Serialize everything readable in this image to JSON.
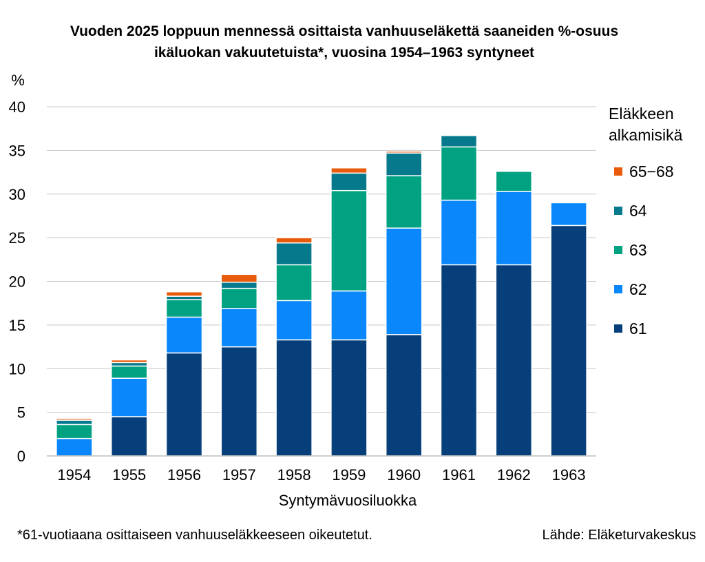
{
  "chart_data": {
    "type": "bar",
    "stacked": true,
    "title_lines": [
      "Vuoden 2025 loppuun mennessä osittaista vanhuuseläkettä saaneiden %-osuus",
      "ikäluokan vakuutetuista*, vuosina 1954–1963 syntyneet"
    ],
    "ylabel": "%",
    "xlabel": "Syntymävuosiluokka",
    "ylim": [
      0,
      40
    ],
    "yticks": [
      0,
      5,
      10,
      15,
      20,
      25,
      30,
      35,
      40
    ],
    "grid": true,
    "legend_title": "Eläkkeen alkamisikä",
    "legend_title_lines": [
      "Eläkkeen",
      "alkamisikä"
    ],
    "legend_position": "right",
    "categories": [
      "1954",
      "1955",
      "1956",
      "1957",
      "1958",
      "1959",
      "1960",
      "1961",
      "1962",
      "1963"
    ],
    "series": [
      {
        "name": "61",
        "color": "#073f7b",
        "values": [
          0,
          4.5,
          11.8,
          12.5,
          13.3,
          13.3,
          13.9,
          21.9,
          21.9,
          26.4
        ]
      },
      {
        "name": "62",
        "color": "#0a87fb",
        "values": [
          2.0,
          4.4,
          4.1,
          4.4,
          4.5,
          5.6,
          12.2,
          7.4,
          8.4,
          2.6
        ]
      },
      {
        "name": "63",
        "color": "#01a282",
        "values": [
          1.6,
          1.4,
          2.0,
          2.3,
          4.1,
          11.5,
          6.0,
          6.1,
          2.3,
          0
        ]
      },
      {
        "name": "64",
        "color": "#06798d",
        "values": [
          0.5,
          0.4,
          0.4,
          0.7,
          2.5,
          2.0,
          2.6,
          1.3,
          0,
          0
        ]
      },
      {
        "name": "65−68",
        "color": "#e85b0a",
        "values": [
          0.2,
          0.3,
          0.5,
          0.9,
          0.6,
          0.6,
          0.2,
          0,
          0,
          0
        ]
      }
    ]
  },
  "footnote": "*61-vuotiaana osittaiseen vanhuuseläkkeeseen oikeutetut.",
  "source": "Lähde: Eläketurvakeskus"
}
